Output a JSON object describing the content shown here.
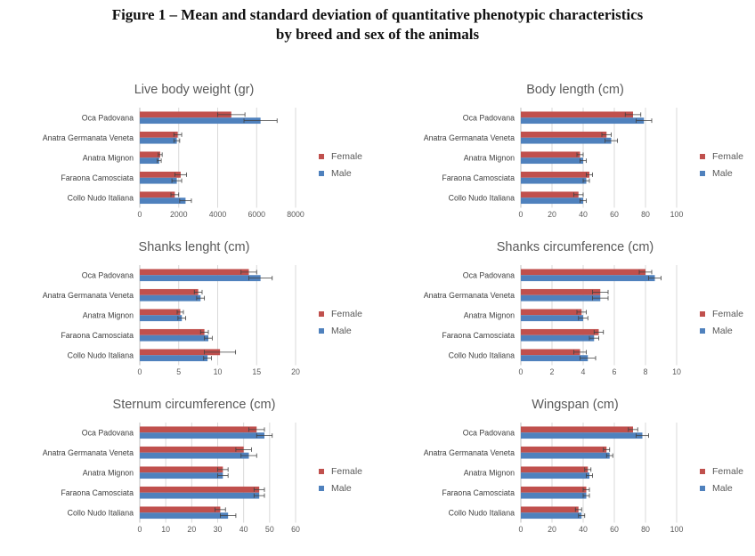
{
  "figure": {
    "title_line1": "Figure 1 – Mean and standard deviation of quantitative phenotypic characteristics",
    "title_line2": "by breed and sex of the animals"
  },
  "colors": {
    "female": "#c0504d",
    "male": "#4f81bd",
    "grid": "#d9d9d9",
    "axis": "#bfbfbf",
    "errorbar": "#404040"
  },
  "chart_data": [
    {
      "type": "bar",
      "orientation": "horizontal",
      "title": "Live body weight (gr)",
      "categories": [
        "Oca Padovana",
        "Anatra Germanata Veneta",
        "Anatra Mignon",
        "Faraona Camosciata",
        "Collo Nudo Italiana"
      ],
      "series": [
        {
          "name": "Female",
          "values": [
            4700,
            1950,
            1050,
            2100,
            1800
          ],
          "sd": [
            700,
            200,
            100,
            300,
            200
          ]
        },
        {
          "name": "Male",
          "values": [
            6200,
            1900,
            1000,
            1900,
            2350
          ],
          "sd": [
            850,
            150,
            100,
            250,
            300
          ]
        }
      ],
      "xlim": [
        0,
        8000
      ],
      "xticks": [
        "0",
        "2000",
        "4000",
        "6000",
        "8000"
      ],
      "grid": true,
      "legend": "right"
    },
    {
      "type": "bar",
      "orientation": "horizontal",
      "title": "Body length (cm)",
      "categories": [
        "Oca Padovana",
        "Anatra Germanata Veneta",
        "Anatra Mignon",
        "Faraona Camosciata",
        "Collo Nudo Italiana"
      ],
      "series": [
        {
          "name": "Female",
          "values": [
            72,
            55,
            38,
            44,
            37
          ],
          "sd": [
            5,
            3,
            2,
            2,
            3
          ]
        },
        {
          "name": "Male",
          "values": [
            79,
            58,
            40,
            42,
            40
          ],
          "sd": [
            5,
            4,
            2,
            2,
            2
          ]
        }
      ],
      "xlim": [
        0,
        100
      ],
      "xticks": [
        "0",
        "20",
        "40",
        "60",
        "80",
        "100"
      ],
      "grid": true,
      "legend": "right"
    },
    {
      "type": "bar",
      "orientation": "horizontal",
      "title": "Shanks lenght (cm)",
      "categories": [
        "Oca Padovana",
        "Anatra Germanata Veneta",
        "Anatra Mignon",
        "Faraona Camosciata",
        "Collo Nudo Italiana"
      ],
      "series": [
        {
          "name": "Female",
          "values": [
            14,
            7.5,
            5.2,
            8.3,
            10.3
          ],
          "sd": [
            1,
            0.5,
            0.4,
            0.5,
            2
          ]
        },
        {
          "name": "Male",
          "values": [
            15.5,
            7.8,
            5.4,
            8.8,
            8.7
          ],
          "sd": [
            1.5,
            0.5,
            0.5,
            0.5,
            0.5
          ]
        }
      ],
      "xlim": [
        0,
        20
      ],
      "xticks": [
        "0",
        "5",
        "10",
        "15",
        "20"
      ],
      "grid": true,
      "legend": "right"
    },
    {
      "type": "bar",
      "orientation": "horizontal",
      "title": "Shanks circumference (cm)",
      "categories": [
        "Oca Padovana",
        "Anatra Germanata Veneta",
        "Anatra Mignon",
        "Faraona Camosciata",
        "Collo Nudo Italiana"
      ],
      "series": [
        {
          "name": "Female",
          "values": [
            8.0,
            5.1,
            3.9,
            5.0,
            3.8
          ],
          "sd": [
            0.4,
            0.5,
            0.3,
            0.3,
            0.4
          ]
        },
        {
          "name": "Male",
          "values": [
            8.6,
            5.1,
            4.0,
            4.7,
            4.3
          ],
          "sd": [
            0.4,
            0.5,
            0.3,
            0.3,
            0.5
          ]
        }
      ],
      "xlim": [
        0,
        10
      ],
      "xticks": [
        "0",
        "2",
        "4",
        "6",
        "8",
        "10"
      ],
      "grid": true,
      "legend": "right"
    },
    {
      "type": "bar",
      "orientation": "horizontal",
      "title": "Sternum circumference (cm)",
      "categories": [
        "Oca Padovana",
        "Anatra Germanata Veneta",
        "Anatra Mignon",
        "Faraona Camosciata",
        "Collo Nudo Italiana"
      ],
      "series": [
        {
          "name": "Female",
          "values": [
            45,
            40,
            32,
            46,
            31
          ],
          "sd": [
            3,
            3,
            2,
            2,
            2
          ]
        },
        {
          "name": "Male",
          "values": [
            48,
            42,
            32,
            46,
            34
          ],
          "sd": [
            3,
            3,
            2,
            2,
            3
          ]
        }
      ],
      "xlim": [
        0,
        60
      ],
      "xticks": [
        "0",
        "10",
        "20",
        "30",
        "40",
        "50",
        "60"
      ],
      "grid": true,
      "legend": "right"
    },
    {
      "type": "bar",
      "orientation": "horizontal",
      "title": "Wingspan (cm)",
      "categories": [
        "Oca Padovana",
        "Anatra Germanata Veneta",
        "Anatra Mignon",
        "Faraona Camosciata",
        "Collo Nudo Italiana"
      ],
      "series": [
        {
          "name": "Female",
          "values": [
            72,
            55,
            43,
            42,
            37
          ],
          "sd": [
            3,
            2,
            2,
            2,
            2
          ]
        },
        {
          "name": "Male",
          "values": [
            78,
            57,
            44,
            42,
            39
          ],
          "sd": [
            4,
            2,
            2,
            2,
            2
          ]
        }
      ],
      "xlim": [
        0,
        100
      ],
      "xticks": [
        "0",
        "20",
        "40",
        "60",
        "80",
        "100"
      ],
      "grid": true,
      "legend": "right"
    }
  ]
}
